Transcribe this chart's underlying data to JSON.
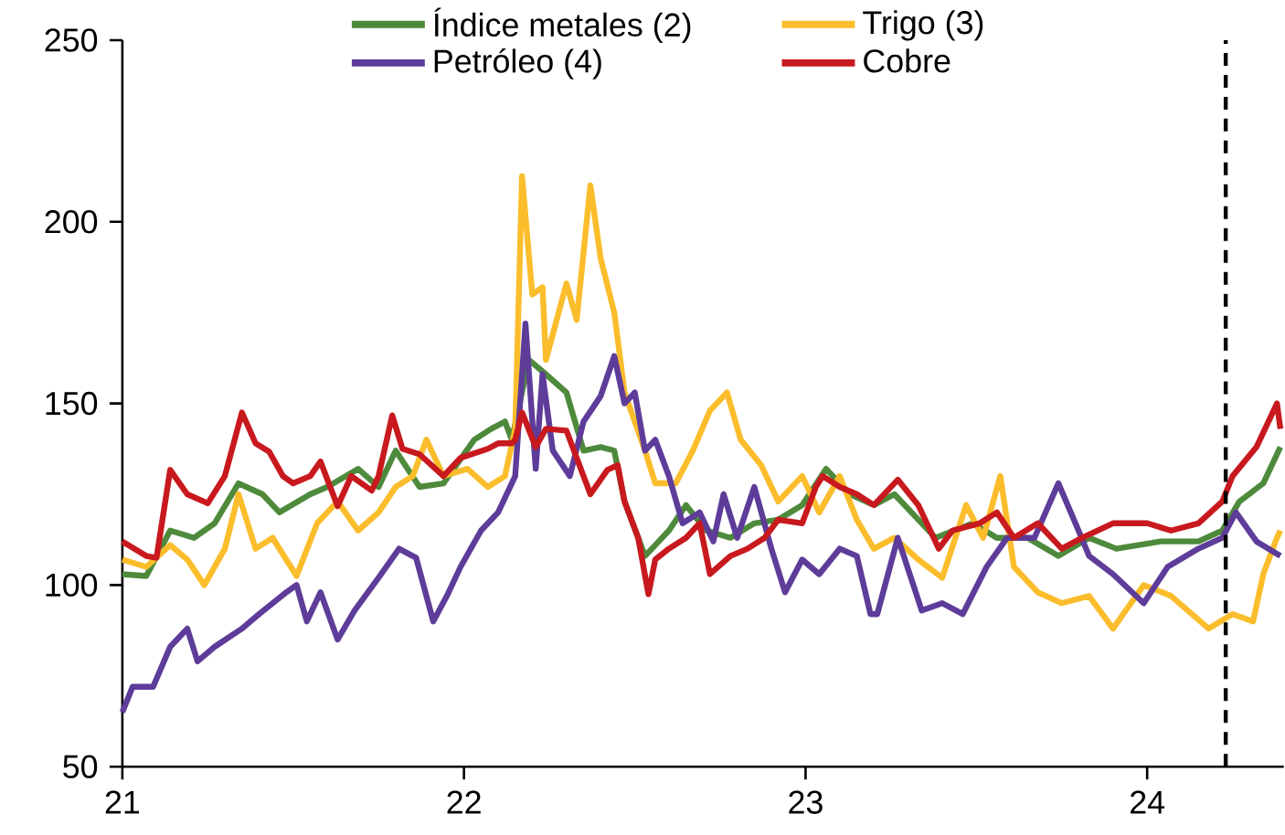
{
  "chart_data": {
    "type": "line",
    "xlim": [
      21,
      24.4
    ],
    "ylim": [
      50,
      250
    ],
    "xticks": [
      21,
      22,
      23,
      24
    ],
    "yticks": [
      50,
      100,
      150,
      200,
      250
    ],
    "legend": "top",
    "line_style": "solid",
    "series": [
      {
        "name": "Índice metales (2)",
        "color": "#4e8a3c",
        "x": [
          21.0,
          21.07,
          21.14,
          21.21,
          21.27,
          21.34,
          21.41,
          21.46,
          21.55,
          21.6,
          21.69,
          21.75,
          21.8,
          21.87,
          21.94,
          22.03,
          22.08,
          22.12,
          22.14,
          22.19,
          22.24,
          22.3,
          22.35,
          22.4,
          22.44,
          22.47,
          22.53,
          22.6,
          22.65,
          22.71,
          22.78,
          22.85,
          22.92,
          22.99,
          23.06,
          23.13,
          23.2,
          23.26,
          23.38,
          23.49,
          23.56,
          23.65,
          23.74,
          23.83,
          23.91,
          24.04,
          24.15,
          24.22,
          24.27,
          24.34,
          24.39
        ],
        "values": [
          103,
          102.5,
          115,
          113,
          117,
          128,
          125,
          120,
          125,
          127,
          132,
          127,
          137,
          127,
          128,
          140,
          143,
          145,
          140,
          162,
          158,
          153,
          137,
          138,
          137,
          123,
          108,
          115,
          122,
          115,
          113,
          117,
          118,
          122,
          132,
          125,
          122,
          125,
          113,
          117,
          113,
          113,
          108,
          113,
          110,
          112,
          112,
          115,
          123,
          128,
          138
        ]
      },
      {
        "name": "Trigo (3)",
        "color": "#fbbd2c",
        "x": [
          21.0,
          21.07,
          21.14,
          21.19,
          21.24,
          21.3,
          21.34,
          21.39,
          21.44,
          21.51,
          21.57,
          21.63,
          21.69,
          21.75,
          21.8,
          21.85,
          21.89,
          21.94,
          22.01,
          22.07,
          22.12,
          22.15,
          22.17,
          22.2,
          22.23,
          22.24,
          22.3,
          22.33,
          22.37,
          22.4,
          22.44,
          22.47,
          22.53,
          22.56,
          22.62,
          22.67,
          22.72,
          22.77,
          22.81,
          22.87,
          22.92,
          22.99,
          23.04,
          23.1,
          23.15,
          23.2,
          23.26,
          23.33,
          23.4,
          23.47,
          23.52,
          23.57,
          23.61,
          23.68,
          23.75,
          23.83,
          23.9,
          23.99,
          24.07,
          24.18,
          24.25,
          24.31,
          24.34,
          24.38,
          24.39
        ],
        "values": [
          107,
          105,
          111,
          107,
          100,
          110,
          125,
          110,
          113,
          102.5,
          117,
          123,
          115,
          120,
          127,
          130,
          140,
          130,
          132,
          127,
          130,
          143,
          212.5,
          180,
          182,
          162,
          183,
          173,
          210,
          190,
          175,
          153,
          137,
          128,
          128,
          137,
          148,
          153,
          140,
          133,
          123,
          130,
          120,
          130,
          118,
          110,
          113,
          107,
          102,
          122,
          113,
          130,
          105,
          98,
          95,
          97,
          88,
          100,
          97,
          88,
          92,
          90,
          103,
          113,
          115
        ]
      },
      {
        "name": "Petróleo (4)",
        "color": "#5e3c99",
        "x": [
          21.0,
          21.03,
          21.09,
          21.14,
          21.19,
          21.22,
          21.27,
          21.35,
          21.4,
          21.48,
          21.51,
          21.54,
          21.58,
          21.63,
          21.68,
          21.75,
          21.81,
          21.86,
          21.91,
          21.95,
          21.99,
          22.05,
          22.1,
          22.15,
          22.18,
          22.21,
          22.23,
          22.26,
          22.31,
          22.35,
          22.4,
          22.44,
          22.47,
          22.5,
          22.53,
          22.56,
          22.6,
          22.64,
          22.69,
          22.73,
          22.76,
          22.8,
          22.85,
          22.9,
          22.94,
          22.99,
          23.04,
          23.1,
          23.15,
          23.19,
          23.21,
          23.27,
          23.34,
          23.4,
          23.46,
          23.53,
          23.59,
          23.67,
          23.74,
          23.79,
          23.83,
          23.9,
          23.99,
          24.06,
          24.15,
          24.22,
          24.26,
          24.32,
          24.39
        ],
        "values": [
          65,
          72,
          72,
          83,
          88,
          79,
          83,
          88,
          92,
          98,
          100,
          90,
          98,
          85,
          93,
          102,
          110,
          107.5,
          90,
          97,
          105,
          115,
          120,
          130,
          172,
          132,
          158,
          137,
          130,
          145,
          152,
          163,
          150,
          153,
          137,
          140,
          130,
          117,
          120,
          112,
          125,
          113,
          127,
          110,
          98,
          107,
          103,
          110,
          108,
          92,
          92,
          113,
          93,
          95,
          92,
          105,
          113,
          113,
          128,
          117,
          108,
          103,
          95,
          105,
          110,
          113,
          120,
          112,
          108
        ]
      },
      {
        "name": "Cobre",
        "color": "#c8191e",
        "x": [
          21.0,
          21.07,
          21.1,
          21.14,
          21.19,
          21.25,
          21.3,
          21.35,
          21.39,
          21.43,
          21.47,
          21.5,
          21.55,
          21.58,
          21.63,
          21.67,
          21.73,
          21.75,
          21.79,
          21.82,
          21.87,
          21.94,
          21.99,
          22.07,
          22.1,
          22.14,
          22.15,
          22.17,
          22.21,
          22.24,
          22.3,
          22.35,
          22.37,
          22.42,
          22.45,
          22.47,
          22.51,
          22.54,
          22.56,
          22.6,
          22.65,
          22.69,
          22.72,
          22.78,
          22.83,
          22.88,
          22.92,
          22.99,
          23.03,
          23.05,
          23.1,
          23.15,
          23.2,
          23.27,
          23.33,
          23.39,
          23.43,
          23.51,
          23.56,
          23.61,
          23.68,
          23.75,
          23.81,
          23.9,
          24.0,
          24.07,
          24.15,
          24.22,
          24.25,
          24.32,
          24.38,
          24.39
        ],
        "values": [
          112,
          108,
          107.5,
          131.7,
          125,
          122.5,
          130,
          147.5,
          139,
          136.7,
          130,
          128,
          130,
          134,
          121.7,
          130,
          126,
          130,
          146.7,
          137.5,
          136,
          130,
          135,
          137.5,
          139,
          139,
          140,
          147.5,
          138,
          143,
          142.5,
          130,
          125,
          131.7,
          133,
          123,
          113,
          97.5,
          107,
          110,
          113,
          117,
          103,
          108,
          110,
          113,
          118,
          117,
          127,
          130,
          127,
          125,
          122,
          129,
          122,
          110,
          115,
          117,
          120,
          113,
          117,
          110,
          113,
          117,
          117,
          115,
          117,
          123,
          130,
          138,
          150,
          143
        ]
      }
    ],
    "ref_lines": [
      {
        "axis": "x",
        "value": 24.23,
        "color": "#000000",
        "line_style": "dashed"
      }
    ]
  }
}
